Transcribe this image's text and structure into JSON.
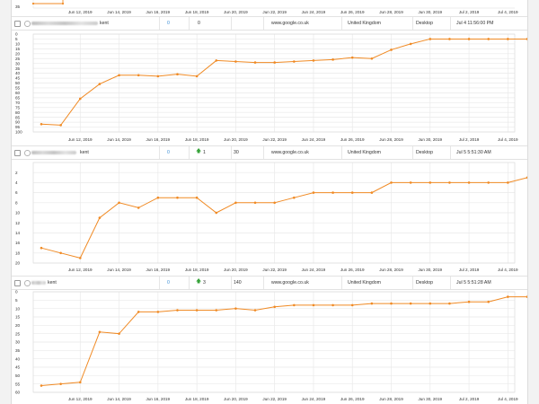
{
  "colors": {
    "line": "#f08a24",
    "grid": "#e9e9e9",
    "axis_text": "#333333",
    "accent_blue": "#3d8fd6",
    "up_arrow": "#37a33a"
  },
  "top_partial": {
    "y_tick_label": "35",
    "x_tick_labels": [
      "Jun 12, 2019",
      "Jun 14, 2019",
      "Jun 16, 2019",
      "Jun 18, 2019",
      "Jun 20, 2019",
      "Jun 22, 2019",
      "Jun 24, 2019",
      "Jun 26, 2019",
      "Jun 28, 2019",
      "Jun 30, 2019",
      "Jul 2, 2019",
      "Jul 4, 2019"
    ]
  },
  "rows": [
    {
      "keyword_suffix": "kent",
      "count": "0",
      "change_icon": "",
      "change": "",
      "position": "0",
      "volume": "",
      "engine": "www.google.co.uk",
      "country": "United Kingdom",
      "device": "Desktop",
      "updated": "Jul 4 11:56:00 PM"
    },
    {
      "keyword_suffix": "kent",
      "count": "0",
      "change_icon": "arrow-up-icon",
      "change": "1",
      "position": "",
      "volume": "30",
      "engine": "www.google.co.uk",
      "country": "United Kingdom",
      "device": "Desktop",
      "updated": "Jul 5 5:51:30 AM"
    },
    {
      "keyword_suffix": "kent",
      "count": "0",
      "change_icon": "arrow-up-icon",
      "change": "3",
      "position": "",
      "volume": "140",
      "engine": "www.google.co.uk",
      "country": "United Kingdom",
      "device": "Desktop",
      "updated": "Jul 5 5:51:28 AM"
    }
  ],
  "chart_data": [
    {
      "type": "line",
      "title": "",
      "xlabel": "",
      "ylabel": "",
      "y_reversed": true,
      "ylim": [
        0,
        100
      ],
      "y_ticks": [
        0,
        5,
        10,
        15,
        20,
        25,
        30,
        35,
        40,
        45,
        50,
        55,
        60,
        65,
        70,
        75,
        80,
        85,
        90,
        95,
        100
      ],
      "x_start": "Jun 10, 2019",
      "x_end": "Jul 5, 2019",
      "x_ticks": [
        "Jun 12, 2019",
        "Jun 14, 2019",
        "Jun 16, 2019",
        "Jun 18, 2019",
        "Jun 20, 2019",
        "Jun 22, 2019",
        "Jun 24, 2019",
        "Jun 26, 2019",
        "Jun 28, 2019",
        "Jun 30, 2019",
        "Jul 2, 2019",
        "Jul 4, 2019"
      ],
      "grid": true,
      "series": [
        {
          "x": [
            "Jun 10, 2019",
            "Jun 11, 2019",
            "Jun 12, 2019",
            "Jun 13, 2019",
            "Jun 14, 2019",
            "Jun 15, 2019",
            "Jun 16, 2019",
            "Jun 17, 2019",
            "Jun 18, 2019",
            "Jun 19, 2019",
            "Jun 20, 2019",
            "Jun 21, 2019",
            "Jun 22, 2019",
            "Jun 23, 2019",
            "Jun 24, 2019",
            "Jun 25, 2019",
            "Jun 26, 2019",
            "Jun 27, 2019",
            "Jun 28, 2019",
            "Jun 29, 2019",
            "Jun 30, 2019",
            "Jul 1, 2019",
            "Jul 2, 2019",
            "Jul 3, 2019",
            "Jul 4, 2019",
            "Jul 5, 2019"
          ],
          "values": [
            92,
            93,
            66,
            51,
            42,
            42,
            43,
            41,
            43,
            27,
            28,
            29,
            29,
            28,
            27,
            26,
            24,
            25,
            16,
            10,
            5,
            5,
            5,
            5,
            5,
            5
          ]
        }
      ]
    },
    {
      "type": "line",
      "title": "",
      "xlabel": "",
      "ylabel": "",
      "y_reversed": true,
      "ylim": [
        0,
        20
      ],
      "y_ticks": [
        2,
        4,
        6,
        8,
        10,
        12,
        14,
        16,
        18,
        20
      ],
      "x_start": "Jun 10, 2019",
      "x_end": "Jul 5, 2019",
      "x_ticks": [
        "Jun 12, 2019",
        "Jun 14, 2019",
        "Jun 16, 2019",
        "Jun 18, 2019",
        "Jun 20, 2019",
        "Jun 22, 2019",
        "Jun 24, 2019",
        "Jun 26, 2019",
        "Jun 28, 2019",
        "Jun 30, 2019",
        "Jul 2, 2019",
        "Jul 4, 2019"
      ],
      "grid": true,
      "series": [
        {
          "x": [
            "Jun 10, 2019",
            "Jun 11, 2019",
            "Jun 12, 2019",
            "Jun 13, 2019",
            "Jun 14, 2019",
            "Jun 15, 2019",
            "Jun 16, 2019",
            "Jun 17, 2019",
            "Jun 18, 2019",
            "Jun 19, 2019",
            "Jun 20, 2019",
            "Jun 21, 2019",
            "Jun 22, 2019",
            "Jun 23, 2019",
            "Jun 24, 2019",
            "Jun 25, 2019",
            "Jun 26, 2019",
            "Jun 27, 2019",
            "Jun 28, 2019",
            "Jun 29, 2019",
            "Jun 30, 2019",
            "Jul 1, 2019",
            "Jul 2, 2019",
            "Jul 3, 2019",
            "Jul 4, 2019",
            "Jul 5, 2019"
          ],
          "values": [
            17,
            18,
            19,
            11,
            8,
            9,
            7,
            7,
            7,
            10,
            8,
            8,
            8,
            7,
            6,
            6,
            6,
            6,
            4,
            4,
            4,
            4,
            4,
            4,
            4,
            3
          ]
        }
      ]
    },
    {
      "type": "line",
      "title": "",
      "xlabel": "",
      "ylabel": "",
      "y_reversed": true,
      "ylim": [
        0,
        60
      ],
      "y_ticks": [
        0,
        5,
        10,
        15,
        20,
        25,
        30,
        35,
        40,
        45,
        50,
        55,
        60
      ],
      "x_start": "Jun 10, 2019",
      "x_end": "Jul 5, 2019",
      "x_ticks": [
        "Jun 12, 2019",
        "Jun 14, 2019",
        "Jun 16, 2019",
        "Jun 18, 2019",
        "Jun 20, 2019",
        "Jun 22, 2019",
        "Jun 24, 2019",
        "Jun 26, 2019",
        "Jun 28, 2019",
        "Jun 30, 2019",
        "Jul 2, 2019",
        "Jul 4, 2019"
      ],
      "grid": true,
      "series": [
        {
          "x": [
            "Jun 10, 2019",
            "Jun 11, 2019",
            "Jun 12, 2019",
            "Jun 13, 2019",
            "Jun 14, 2019",
            "Jun 15, 2019",
            "Jun 16, 2019",
            "Jun 17, 2019",
            "Jun 18, 2019",
            "Jun 19, 2019",
            "Jun 20, 2019",
            "Jun 21, 2019",
            "Jun 22, 2019",
            "Jun 23, 2019",
            "Jun 24, 2019",
            "Jun 25, 2019",
            "Jun 26, 2019",
            "Jun 27, 2019",
            "Jun 28, 2019",
            "Jun 29, 2019",
            "Jun 30, 2019",
            "Jul 1, 2019",
            "Jul 2, 2019",
            "Jul 3, 2019",
            "Jul 4, 2019",
            "Jul 5, 2019"
          ],
          "values": [
            56,
            55,
            54,
            24,
            25,
            12,
            12,
            11,
            11,
            11,
            10,
            11,
            9,
            8,
            8,
            8,
            8,
            7,
            7,
            7,
            7,
            7,
            6,
            6,
            3,
            3
          ]
        }
      ]
    }
  ]
}
